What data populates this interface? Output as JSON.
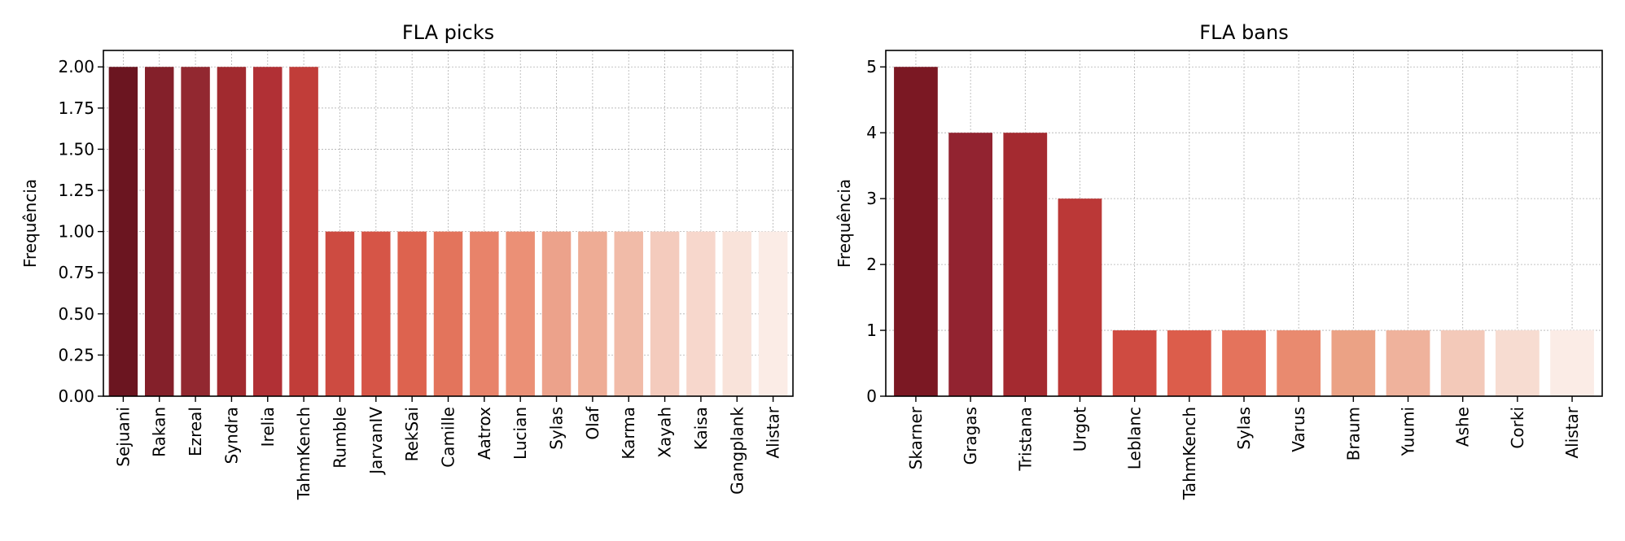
{
  "chart_data": [
    {
      "type": "bar",
      "title": "FLA picks",
      "ylabel": "Frequência",
      "xlabel": "",
      "ylim": [
        0,
        2.1
      ],
      "yticks": [
        "0.00",
        "0.25",
        "0.50",
        "0.75",
        "1.00",
        "1.25",
        "1.50",
        "1.75",
        "2.00"
      ],
      "categories": [
        "Sejuani",
        "Rakan",
        "Ezreal",
        "Syndra",
        "Irelia",
        "TahmKench",
        "Rumble",
        "JarvanIV",
        "RekSai",
        "Camille",
        "Aatrox",
        "Lucian",
        "Sylas",
        "Olaf",
        "Karma",
        "Xayah",
        "Kaisa",
        "Gangplank",
        "Alistar"
      ],
      "values": [
        2,
        2,
        2,
        2,
        2,
        2,
        1,
        1,
        1,
        1,
        1,
        1,
        1,
        1,
        1,
        1,
        1,
        1,
        1
      ],
      "colors": [
        "#6b1520",
        "#84202a",
        "#922830",
        "#a12a2f",
        "#b13035",
        "#c13d39",
        "#cd4b41",
        "#d65547",
        "#dd634f",
        "#e3745c",
        "#e8836a",
        "#eb9076",
        "#eca28b",
        "#eeac95",
        "#f1bba8",
        "#f4cbbd",
        "#f7d7cc",
        "#f9e3da",
        "#fbece6"
      ],
      "grid": true
    },
    {
      "type": "bar",
      "title": "FLA bans",
      "ylabel": "Frequência",
      "xlabel": "",
      "ylim": [
        0,
        5.25
      ],
      "yticks": [
        "0",
        "1",
        "2",
        "3",
        "4",
        "5"
      ],
      "categories": [
        "Skarner",
        "Gragas",
        "Tristana",
        "Urgot",
        "Leblanc",
        "TahmKench",
        "Sylas",
        "Varus",
        "Braum",
        "Yuumi",
        "Ashe",
        "Corki",
        "Alistar"
      ],
      "values": [
        5,
        4,
        4,
        3,
        1,
        1,
        1,
        1,
        1,
        1,
        1,
        1,
        1
      ],
      "colors": [
        "#7b1823",
        "#922330",
        "#a42a30",
        "#bb3837",
        "#cf4b41",
        "#dc5d4b",
        "#e4735c",
        "#e98a6f",
        "#eba285",
        "#efb29c",
        "#f3c9b9",
        "#f7dcd1",
        "#fbece6"
      ],
      "grid": true
    }
  ]
}
